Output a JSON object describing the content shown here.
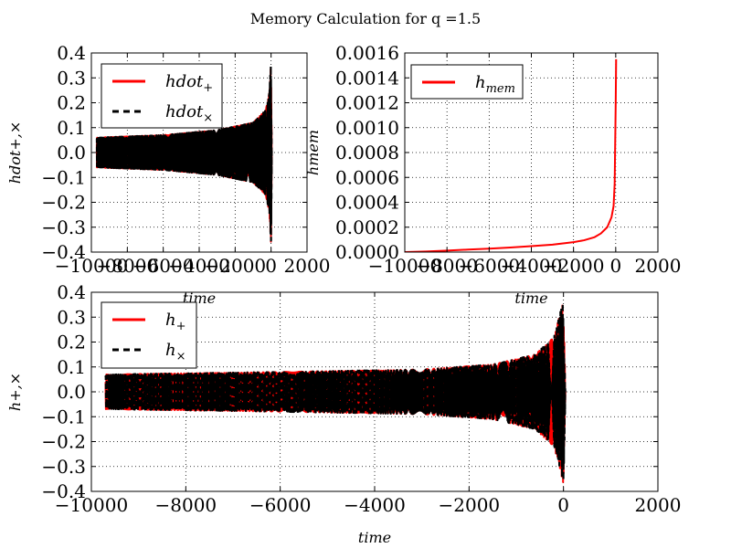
{
  "figure": {
    "title": "Memory Calculation for q =1.5"
  },
  "chart_data": [
    {
      "id": "hdot",
      "type": "line",
      "title": "",
      "xlabel": "time",
      "ylabel": "hdot+,×",
      "xlim": [
        -10000,
        2000
      ],
      "ylim": [
        -0.4,
        0.4
      ],
      "xticks": [
        -10000,
        -8000,
        -6000,
        -4000,
        -2000,
        0,
        2000
      ],
      "xtick_labels": [
        "−10000",
        "−8000",
        "−6000",
        "−4000",
        "−2000",
        "0",
        "2000"
      ],
      "yticks": [
        -0.4,
        -0.3,
        -0.2,
        -0.1,
        0.0,
        0.1,
        0.2,
        0.3,
        0.4
      ],
      "ytick_labels": [
        "−0.4",
        "−0.3",
        "−0.2",
        "−0.1",
        "0.0",
        "0.1",
        "0.2",
        "0.3",
        "0.4"
      ],
      "grid": true,
      "legend_position": "top-left",
      "series": [
        {
          "name": "hdot+",
          "color": "#ff0000",
          "style": "solid",
          "x_start": -9700,
          "x_end": 40,
          "envelope": [
            [
              -9700,
              0.06
            ],
            [
              -6000,
              0.07
            ],
            [
              -3000,
              0.09
            ],
            [
              -1000,
              0.12
            ],
            [
              -300,
              0.17
            ],
            [
              -100,
              0.24
            ],
            [
              0,
              0.37
            ],
            [
              30,
              0.12
            ],
            [
              40,
              0.0
            ]
          ]
        },
        {
          "name": "hdot×",
          "color": "#000000",
          "style": "dashed",
          "x_start": -9700,
          "x_end": 40,
          "envelope": [
            [
              -9700,
              0.06
            ],
            [
              -6000,
              0.07
            ],
            [
              -3000,
              0.09
            ],
            [
              -1000,
              0.12
            ],
            [
              -300,
              0.17
            ],
            [
              -100,
              0.24
            ],
            [
              0,
              0.37
            ],
            [
              30,
              0.12
            ],
            [
              40,
              0.0
            ]
          ]
        }
      ]
    },
    {
      "id": "hmem",
      "type": "line",
      "title": "",
      "xlabel": "time",
      "ylabel": "hmem",
      "xlim": [
        -10000,
        2000
      ],
      "ylim": [
        0.0,
        0.0016
      ],
      "xticks": [
        -10000,
        -8000,
        -6000,
        -4000,
        -2000,
        0,
        2000
      ],
      "xtick_labels": [
        "−10000",
        "−8000",
        "−6000",
        "−4000",
        "−2000",
        "0",
        "2000"
      ],
      "yticks": [
        0.0,
        0.0002,
        0.0004,
        0.0006,
        0.0008,
        0.001,
        0.0012,
        0.0014,
        0.0016
      ],
      "ytick_labels": [
        "0.0000",
        "0.0002",
        "0.0004",
        "0.0006",
        "0.0008",
        "0.0010",
        "0.0012",
        "0.0014",
        "0.0016"
      ],
      "grid": true,
      "legend_position": "top-left",
      "series": [
        {
          "name": "hmem",
          "color": "#ff0000",
          "style": "solid",
          "x": [
            -10000,
            -9000,
            -8000,
            -7000,
            -6000,
            -5000,
            -4000,
            -3000,
            -2500,
            -2000,
            -1500,
            -1000,
            -700,
            -400,
            -200,
            -100,
            -50,
            0,
            20
          ],
          "y": [
            0.0,
            5e-06,
            1.2e-05,
            2e-05,
            2.8e-05,
            3.7e-05,
            4.8e-05,
            6e-05,
            7e-05,
            8e-05,
            9.5e-05,
            0.00012,
            0.00015,
            0.0002,
            0.00028,
            0.00037,
            0.00055,
            0.0012,
            0.00155
          ]
        }
      ]
    },
    {
      "id": "h",
      "type": "line",
      "title": "",
      "xlabel": "time",
      "ylabel": "h+,×",
      "xlim": [
        -10000,
        2000
      ],
      "ylim": [
        -0.4,
        0.4
      ],
      "xticks": [
        -10000,
        -8000,
        -6000,
        -4000,
        -2000,
        0,
        2000
      ],
      "xtick_labels": [
        "−10000",
        "−8000",
        "−6000",
        "−4000",
        "−2000",
        "0",
        "2000"
      ],
      "yticks": [
        -0.4,
        -0.3,
        -0.2,
        -0.1,
        0.0,
        0.1,
        0.2,
        0.3,
        0.4
      ],
      "ytick_labels": [
        "−0.4",
        "−0.3",
        "−0.2",
        "−0.1",
        "0.0",
        "0.1",
        "0.2",
        "0.3",
        "0.4"
      ],
      "grid": true,
      "legend_position": "top-left",
      "series": [
        {
          "name": "h+",
          "color": "#ff0000",
          "style": "solid",
          "x_start": -9700,
          "x_end": 40,
          "envelope": [
            [
              -9700,
              0.07
            ],
            [
              -6000,
              0.08
            ],
            [
              -3000,
              0.09
            ],
            [
              -1500,
              0.11
            ],
            [
              -600,
              0.15
            ],
            [
              -200,
              0.22
            ],
            [
              0,
              0.37
            ],
            [
              30,
              0.12
            ],
            [
              40,
              0.0
            ]
          ]
        },
        {
          "name": "h×",
          "color": "#000000",
          "style": "dashed",
          "x_start": -9700,
          "x_end": 40,
          "envelope": [
            [
              -9700,
              0.07
            ],
            [
              -6000,
              0.08
            ],
            [
              -3000,
              0.09
            ],
            [
              -1500,
              0.11
            ],
            [
              -600,
              0.15
            ],
            [
              -200,
              0.22
            ],
            [
              0,
              0.37
            ],
            [
              30,
              0.12
            ],
            [
              40,
              0.0
            ]
          ]
        }
      ]
    }
  ]
}
